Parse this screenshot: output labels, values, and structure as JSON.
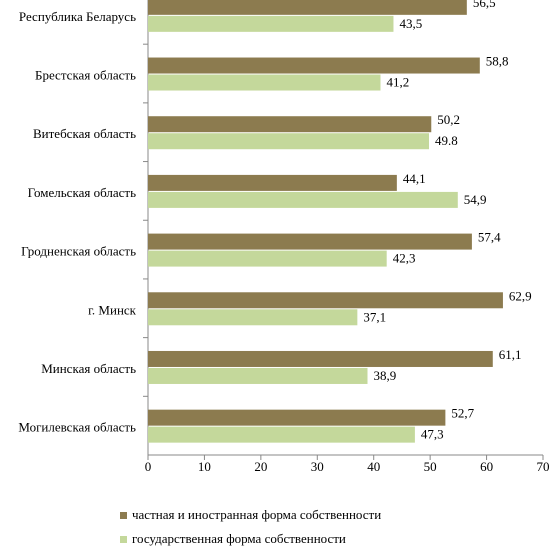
{
  "chart_data": {
    "type": "barh",
    "categories": [
      "Республика Беларусь",
      "Брестская область",
      "Витебская область",
      "Гомельская область",
      "Гродненская область",
      "г. Минск",
      "Минская область",
      "Могилевская область"
    ],
    "series": [
      {
        "name": "частная и иностранная форма собственности",
        "color": "#8c7b4f",
        "values": [
          56.5,
          58.8,
          50.2,
          44.1,
          57.4,
          62.9,
          61.1,
          52.7
        ],
        "value_labels": [
          "56,5",
          "58,8",
          "50,2",
          "44,1",
          "57,4",
          "62,9",
          "61,1",
          "52,7"
        ]
      },
      {
        "name": "государственная форма собственности",
        "color": "#c4d89b",
        "values": [
          43.5,
          41.2,
          49.8,
          54.9,
          42.3,
          37.1,
          38.9,
          47.3
        ],
        "value_labels": [
          "43,5",
          "41,2",
          "49.8",
          "54,9",
          "42,3",
          "37,1",
          "38,9",
          "47,3"
        ]
      }
    ],
    "xlim": [
      0,
      70
    ],
    "xticks": [
      0,
      10,
      20,
      30,
      40,
      50,
      60,
      70
    ],
    "grid": false,
    "legend": "bottom"
  }
}
